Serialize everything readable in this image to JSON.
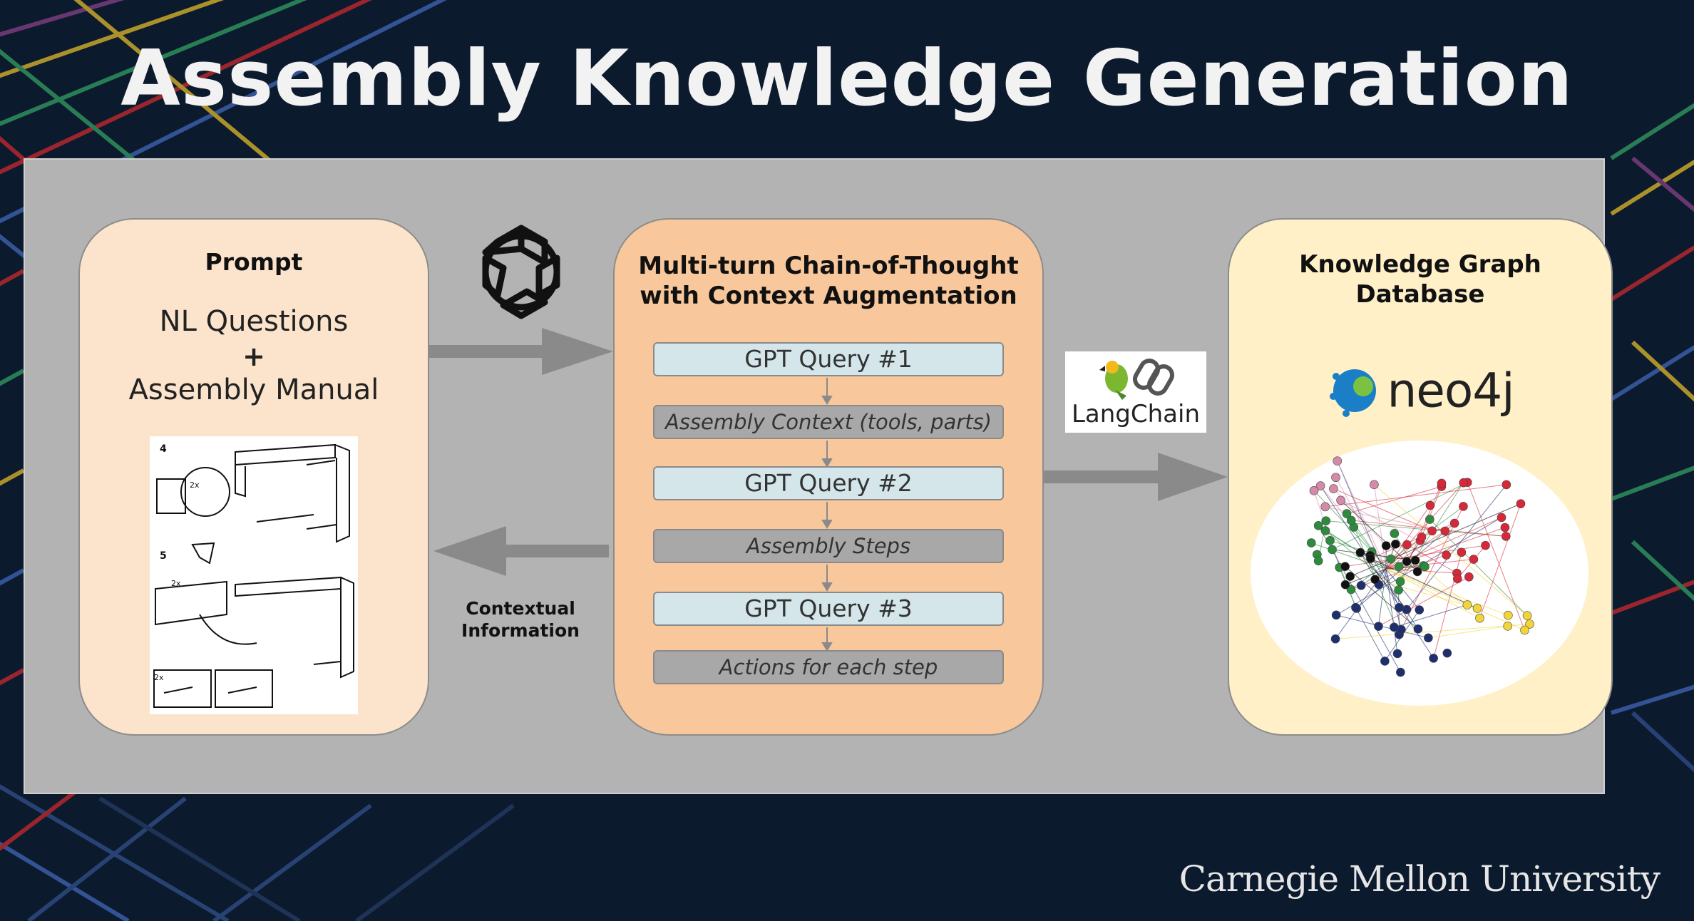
{
  "title": "Assembly Knowledge Generation",
  "prompt_box": {
    "heading": "Prompt",
    "line1": "NL Questions",
    "plus": "+",
    "line2": "Assembly Manual",
    "manual_step_a": "4",
    "manual_step_b": "5",
    "manual_qty_a": "2x",
    "manual_qty_b": "2x",
    "manual_qty_c": "2x"
  },
  "cot_box": {
    "heading_line1": "Multi-turn Chain-of-Thought",
    "heading_line2": "with Context Augmentation",
    "steps": [
      {
        "kind": "query",
        "label": "GPT Query #1"
      },
      {
        "kind": "context",
        "label": "Assembly Context (tools, parts)"
      },
      {
        "kind": "query",
        "label": "GPT Query #2"
      },
      {
        "kind": "context",
        "label": "Assembly Steps"
      },
      {
        "kind": "query",
        "label": "GPT Query #3"
      },
      {
        "kind": "context",
        "label": "Actions for each step"
      }
    ]
  },
  "kg_box": {
    "heading_line1": "Knowledge Graph",
    "heading_line2": "Database",
    "neo4j_label": "neo4j"
  },
  "langchain_label": "LangChain",
  "contextual_info": {
    "line1": "Contextual",
    "line2": "Information"
  },
  "footer": "Carnegie Mellon University",
  "icons": {
    "openai": "openai-logo-icon",
    "parrot": "parrot-icon",
    "chain": "chain-link-icon",
    "neo4j": "neo4j-logo-icon"
  },
  "colors": {
    "background": "#0c1a2e",
    "panel": "#b3b3b3",
    "prompt_box": "#fce4cc",
    "cot_box": "#f8c89c",
    "kg_box": "#fff0c8",
    "query_step": "#d4e6ea",
    "context_step": "#a8a8a8",
    "arrow": "#8a8a8a"
  }
}
